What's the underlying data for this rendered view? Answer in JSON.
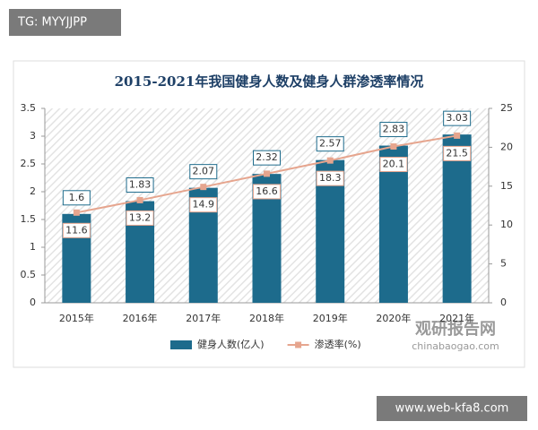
{
  "chart_data": {
    "type": "bar",
    "title": "2015-2021年我国健身人数及健身人群渗透率情况",
    "categories": [
      "2015年",
      "2016年",
      "2017年",
      "2018年",
      "2019年",
      "2020年",
      "2021年"
    ],
    "series": [
      {
        "name": "健身人数(亿人)",
        "type": "bar",
        "color": "#1d6b8c",
        "values": [
          1.6,
          1.83,
          2.07,
          2.32,
          2.57,
          2.83,
          3.03
        ]
      },
      {
        "name": "渗透率(%)",
        "type": "line",
        "axis": "y2",
        "color": "#e6a58e",
        "values": [
          11.6,
          13.2,
          14.9,
          16.6,
          18.3,
          20.1,
          21.5
        ]
      }
    ],
    "ylim": [
      0,
      3.5
    ],
    "yticks": [
      0,
      0.5,
      1,
      1.5,
      2,
      2.5,
      3,
      3.5
    ],
    "y2lim": [
      0,
      25
    ],
    "y2ticks": [
      0,
      5,
      10,
      15,
      20,
      25
    ],
    "legend": "bottom"
  },
  "watermarks": {
    "top_left": "TG: MYYJJPP",
    "logo": "观研报告网",
    "logo_url": "chinabaogao.com",
    "bottom_right": "www.web-kfa8.com"
  }
}
